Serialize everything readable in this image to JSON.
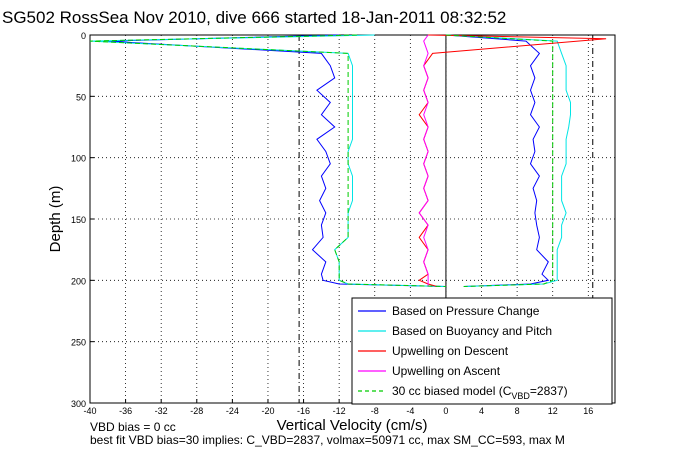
{
  "chart_data": {
    "type": "line",
    "title": "SG502 RossSea Nov 2010, dive 666 started 18-Jan-2011 08:32:52",
    "xlabel": "Vertical Velocity (cm/s)",
    "ylabel": "Depth (m)",
    "xlim": [
      -40,
      19
    ],
    "ylim": [
      300,
      0
    ],
    "y_reversed": true,
    "grid": true,
    "x_ticks": [
      -40,
      -36,
      -32,
      -28,
      -24,
      -20,
      -16,
      -12,
      -8,
      -4,
      0,
      4,
      8,
      12,
      16
    ],
    "y_ticks": [
      0,
      50,
      100,
      150,
      200,
      250,
      300
    ],
    "reference_lines": [
      {
        "x": -16.5,
        "style": "dash-dot"
      },
      {
        "x": 16.5,
        "style": "dash-dot"
      },
      {
        "x": 0,
        "style": "solid"
      }
    ],
    "legend_position": "bottom-right",
    "series": [
      {
        "name": "Based on Pressure Change",
        "color": "#0000ff",
        "x_desc": [
          -12,
          -38,
          -14,
          -13,
          -12.5,
          -14.5,
          -13,
          -14,
          -12.5,
          -14.5,
          -13.5,
          -13,
          -14,
          -13.5,
          -14.2,
          -13.5,
          -14,
          -13.8,
          -15,
          -13.5,
          -14,
          -13.8,
          -12,
          0
        ],
        "x_asc": [
          0,
          9,
          10.5,
          9.5,
          10,
          9.5,
          10,
          9.5,
          10.5,
          9.8,
          10,
          9.5,
          10.5,
          9.8,
          10.2,
          10,
          10.2,
          10.5,
          10.2,
          11.5,
          10.8,
          11.5,
          9.5,
          2
        ],
        "depth": [
          0,
          5,
          15,
          25,
          35,
          45,
          55,
          65,
          75,
          85,
          95,
          105,
          115,
          125,
          135,
          145,
          155,
          165,
          175,
          185,
          195,
          200,
          203,
          205
        ]
      },
      {
        "name": "Based on Buoyancy and Pitch",
        "color": "#00e5e5",
        "x_desc": [
          -8,
          -40,
          -11,
          -10.5,
          -10.5,
          -10.5,
          -10.5,
          -10.5,
          -10.5,
          -10.5,
          -11,
          -11,
          -10.5,
          -10.5,
          -10.5,
          -11,
          -11,
          -11,
          -12.5,
          -12,
          -12,
          -12,
          -11,
          0
        ],
        "x_asc": [
          0,
          12.5,
          13,
          13.5,
          13.5,
          13.5,
          14,
          14,
          13.8,
          13.5,
          13.5,
          13.5,
          13,
          13,
          13,
          13.5,
          13,
          13,
          12.5,
          12.5,
          12.5,
          12.5,
          11,
          2
        ],
        "depth": [
          0,
          5,
          15,
          25,
          35,
          45,
          55,
          65,
          75,
          85,
          95,
          105,
          115,
          125,
          135,
          145,
          155,
          165,
          175,
          185,
          195,
          200,
          203,
          205
        ]
      },
      {
        "name": "Upwelling on Descent",
        "color": "#ff0000",
        "x": [
          -2,
          18,
          -1.5,
          -2.5,
          -2,
          -2.5,
          -2,
          -3,
          -2,
          -2.5,
          -2,
          -2.5,
          -2,
          -2.5,
          -2,
          -3,
          -2,
          -3,
          -2,
          -2.5,
          -2,
          -3,
          -2,
          -1
        ],
        "depth": [
          0,
          3,
          15,
          25,
          35,
          45,
          55,
          65,
          75,
          85,
          95,
          105,
          115,
          125,
          135,
          145,
          155,
          165,
          175,
          185,
          195,
          200,
          203,
          205
        ]
      },
      {
        "name": "Upwelling on Ascent",
        "color": "#ff00ff",
        "x": [
          -2,
          -2.5,
          -2,
          -2.5,
          -2,
          -2.5,
          -2,
          -2.5,
          -2,
          -2.5,
          -2,
          -2.5,
          -2,
          -2.5,
          -2,
          -3,
          -2,
          -2.5,
          -2,
          -2.5,
          -2,
          -2,
          -2,
          -2
        ],
        "depth": [
          0,
          5,
          15,
          25,
          35,
          45,
          55,
          65,
          75,
          85,
          95,
          105,
          115,
          125,
          135,
          145,
          155,
          165,
          175,
          185,
          195,
          200,
          203,
          205
        ]
      },
      {
        "name": "30 cc biased model (C",
        "name_sub": "VBD",
        "name_tail": "=2837)",
        "color": "#00cc00",
        "dashed": true,
        "x_desc": [
          -10,
          -40,
          -11,
          -11,
          -11,
          -11,
          -11,
          -11,
          -11,
          -11,
          -11,
          -11,
          -11,
          -11,
          -11,
          -11,
          -11,
          -11,
          -12.5,
          -12,
          -12,
          -12,
          -11,
          0
        ],
        "x_asc": [
          0,
          12,
          12,
          12,
          12,
          12,
          12,
          12,
          12,
          12,
          12,
          12,
          12,
          12,
          12,
          12,
          12,
          12,
          12,
          12,
          12,
          12,
          11,
          2
        ],
        "depth": [
          0,
          5,
          15,
          25,
          35,
          45,
          55,
          65,
          75,
          85,
          95,
          105,
          115,
          125,
          135,
          145,
          155,
          165,
          175,
          185,
          195,
          200,
          203,
          205
        ]
      }
    ],
    "footnotes": [
      "VBD bias = 0 cc",
      "best fit VBD bias=30 implies: C_VBD=2837, volmax=50971 cc, max SM_CC=593, max M"
    ]
  }
}
